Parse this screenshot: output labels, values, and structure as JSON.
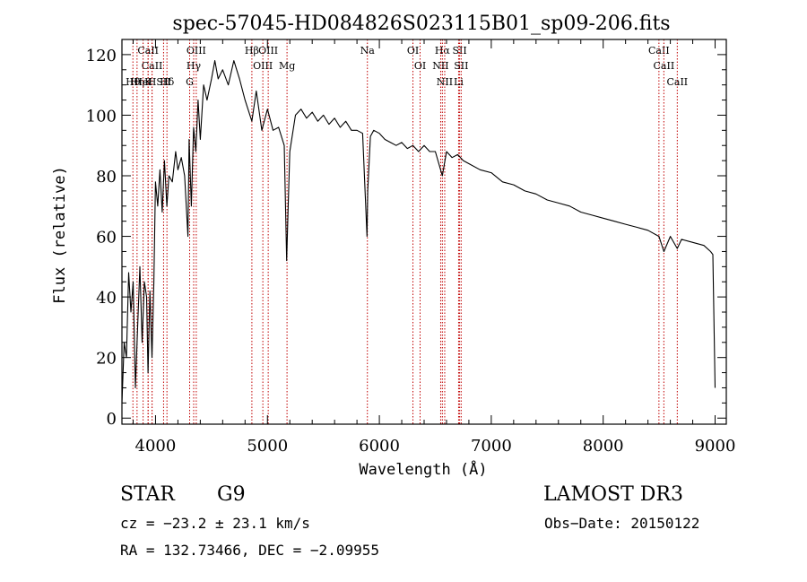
{
  "chart_data": {
    "type": "line",
    "title": "spec-57045-HD084826S023115B01_sp09-206.fits",
    "xlabel": "Wavelength (Å)",
    "ylabel": "Flux (relative)",
    "xlim": [
      3700,
      9100
    ],
    "ylim": [
      -2,
      125
    ],
    "xticks": [
      4000,
      5000,
      6000,
      7000,
      8000,
      9000
    ],
    "yticks": [
      0,
      20,
      40,
      60,
      80,
      100,
      120
    ],
    "grid": false,
    "colors": {
      "spectrum": "#000000",
      "lines": "#c00000",
      "axes": "#000000"
    },
    "series": [
      {
        "name": "spectrum",
        "x": [
          3700,
          3720,
          3740,
          3760,
          3780,
          3800,
          3820,
          3840,
          3860,
          3880,
          3900,
          3920,
          3933,
          3950,
          3968,
          3985,
          4000,
          4020,
          4040,
          4060,
          4080,
          4101,
          4120,
          4150,
          4180,
          4200,
          4230,
          4260,
          4290,
          4300,
          4320,
          4340,
          4360,
          4380,
          4400,
          4430,
          4460,
          4500,
          4530,
          4560,
          4600,
          4650,
          4700,
          4750,
          4800,
          4861,
          4900,
          4950,
          5000,
          5050,
          5100,
          5150,
          5172,
          5185,
          5200,
          5250,
          5300,
          5350,
          5400,
          5450,
          5500,
          5550,
          5600,
          5650,
          5700,
          5750,
          5800,
          5850,
          5890,
          5896,
          5920,
          5950,
          6000,
          6050,
          6100,
          6150,
          6200,
          6250,
          6300,
          6350,
          6400,
          6450,
          6500,
          6563,
          6600,
          6650,
          6700,
          6750,
          6800,
          6900,
          7000,
          7100,
          7200,
          7300,
          7400,
          7500,
          7600,
          7700,
          7800,
          7900,
          8000,
          8100,
          8200,
          8300,
          8400,
          8498,
          8542,
          8600,
          8662,
          8700,
          8800,
          8900,
          8960,
          8980,
          9000
        ],
        "values": [
          5,
          25,
          20,
          48,
          35,
          45,
          10,
          30,
          50,
          25,
          45,
          40,
          15,
          42,
          20,
          45,
          78,
          70,
          82,
          68,
          85,
          70,
          80,
          78,
          88,
          82,
          86,
          80,
          60,
          92,
          70,
          96,
          88,
          105,
          92,
          110,
          105,
          112,
          118,
          112,
          115,
          110,
          118,
          112,
          105,
          98,
          108,
          95,
          102,
          95,
          96,
          90,
          52,
          70,
          88,
          100,
          102,
          99,
          101,
          98,
          100,
          97,
          99,
          96,
          98,
          95,
          95,
          94,
          60,
          75,
          93,
          95,
          94,
          92,
          91,
          90,
          91,
          89,
          90,
          88,
          90,
          88,
          88,
          80,
          88,
          86,
          87,
          85,
          84,
          82,
          81,
          78,
          77,
          75,
          74,
          72,
          71,
          70,
          68,
          67,
          66,
          65,
          64,
          63,
          62,
          60,
          55,
          60,
          56,
          59,
          58,
          57,
          55,
          54,
          10
        ]
      }
    ],
    "line_markers": [
      {
        "label": "CaII",
        "wavelength": 3934
      },
      {
        "label": "CaII",
        "wavelength": 3969
      },
      {
        "label": "Hθ",
        "wavelength": 3798
      },
      {
        "label": "Hη",
        "wavelength": 3835
      },
      {
        "label": "HeI",
        "wavelength": 3889
      },
      {
        "label": "K",
        "wavelength": 3934
      },
      {
        "label": "H",
        "wavelength": 3969
      },
      {
        "label": "Hδ",
        "wavelength": 4102
      },
      {
        "label": "SII",
        "wavelength": 4072
      },
      {
        "label": "OIII",
        "wavelength": 4364
      },
      {
        "label": "Hγ",
        "wavelength": 4341
      },
      {
        "label": "G",
        "wavelength": 4305
      },
      {
        "label": "Hβ",
        "wavelength": 4861
      },
      {
        "label": "OIII",
        "wavelength": 4959
      },
      {
        "label": "OIII",
        "wavelength": 5007
      },
      {
        "label": "Mg",
        "wavelength": 5175
      },
      {
        "label": "Na",
        "wavelength": 5893
      },
      {
        "label": "OI",
        "wavelength": 6300
      },
      {
        "label": "OI",
        "wavelength": 6364
      },
      {
        "label": "Hα",
        "wavelength": 6563
      },
      {
        "label": "NII",
        "wavelength": 6548
      },
      {
        "label": "NII",
        "wavelength": 6584
      },
      {
        "label": "SII",
        "wavelength": 6717
      },
      {
        "label": "Li",
        "wavelength": 6708
      },
      {
        "label": "SII",
        "wavelength": 6731
      },
      {
        "label": "CaII",
        "wavelength": 8498
      },
      {
        "label": "CaII",
        "wavelength": 8542
      },
      {
        "label": "CaII",
        "wavelength": 8662
      }
    ]
  },
  "info": {
    "class": "STAR",
    "subclass": "G9",
    "survey": "LAMOST DR3",
    "cz": "cz = −23.2 ± 23.1 km/s",
    "obs_date": "Obs−Date: 20150122",
    "radec": "RA = 132.73466, DEC =  −2.09955"
  }
}
